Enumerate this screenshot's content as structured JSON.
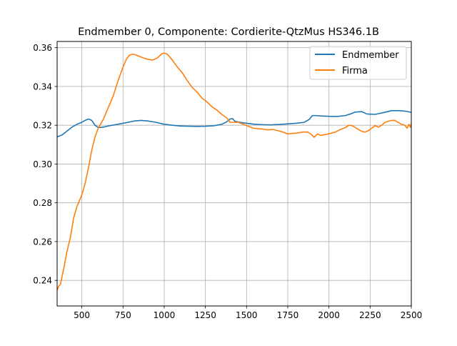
{
  "chart_data": {
    "type": "line",
    "title": "Endmember 0, Componente: Cordierite-QtzMus HS346.1B",
    "xlabel": "",
    "ylabel": "",
    "xlim": [
      350,
      2500
    ],
    "ylim": [
      0.2268,
      0.3632
    ],
    "grid": true,
    "legend_position": "upper right",
    "x_ticks": [
      500,
      750,
      1000,
      1250,
      1500,
      1750,
      2000,
      2250,
      2500
    ],
    "x_tick_labels": [
      "500",
      "750",
      "1000",
      "1250",
      "1500",
      "1750",
      "2000",
      "2250",
      "2500"
    ],
    "y_ticks": [
      0.24,
      0.26,
      0.28,
      0.3,
      0.32,
      0.34,
      0.36
    ],
    "y_tick_labels": [
      "0.24",
      "0.26",
      "0.28",
      "0.30",
      "0.32",
      "0.34",
      "0.36"
    ],
    "series": [
      {
        "name": "Endmember",
        "color": "#1f77b4",
        "points": [
          [
            350,
            0.314
          ],
          [
            380,
            0.315
          ],
          [
            410,
            0.317
          ],
          [
            440,
            0.319
          ],
          [
            470,
            0.3205
          ],
          [
            500,
            0.3215
          ],
          [
            520,
            0.3225
          ],
          [
            540,
            0.3232
          ],
          [
            560,
            0.3225
          ],
          [
            580,
            0.32
          ],
          [
            600,
            0.3188
          ],
          [
            630,
            0.319
          ],
          [
            670,
            0.3198
          ],
          [
            720,
            0.3205
          ],
          [
            780,
            0.3215
          ],
          [
            820,
            0.3222
          ],
          [
            860,
            0.3225
          ],
          [
            900,
            0.3222
          ],
          [
            950,
            0.3215
          ],
          [
            1000,
            0.3205
          ],
          [
            1050,
            0.32
          ],
          [
            1100,
            0.3196
          ],
          [
            1150,
            0.3195
          ],
          [
            1200,
            0.3194
          ],
          [
            1250,
            0.3195
          ],
          [
            1300,
            0.3197
          ],
          [
            1350,
            0.3205
          ],
          [
            1380,
            0.3218
          ],
          [
            1400,
            0.3232
          ],
          [
            1415,
            0.3234
          ],
          [
            1430,
            0.322
          ],
          [
            1460,
            0.3215
          ],
          [
            1500,
            0.321
          ],
          [
            1550,
            0.3205
          ],
          [
            1600,
            0.3203
          ],
          [
            1650,
            0.3202
          ],
          [
            1700,
            0.3204
          ],
          [
            1750,
            0.3207
          ],
          [
            1800,
            0.321
          ],
          [
            1850,
            0.3215
          ],
          [
            1880,
            0.323
          ],
          [
            1900,
            0.325
          ],
          [
            1920,
            0.325
          ],
          [
            1950,
            0.3248
          ],
          [
            2000,
            0.3246
          ],
          [
            2050,
            0.3245
          ],
          [
            2100,
            0.325
          ],
          [
            2130,
            0.3258
          ],
          [
            2160,
            0.3268
          ],
          [
            2200,
            0.327
          ],
          [
            2230,
            0.3258
          ],
          [
            2280,
            0.3256
          ],
          [
            2330,
            0.3265
          ],
          [
            2380,
            0.3275
          ],
          [
            2430,
            0.3275
          ],
          [
            2470,
            0.3272
          ],
          [
            2500,
            0.3266
          ]
        ]
      },
      {
        "name": "Firma",
        "color": "#ff7f0e",
        "points": [
          [
            350,
            0.235
          ],
          [
            360,
            0.237
          ],
          [
            370,
            0.238
          ],
          [
            390,
            0.246
          ],
          [
            410,
            0.255
          ],
          [
            430,
            0.262
          ],
          [
            450,
            0.272
          ],
          [
            470,
            0.278
          ],
          [
            500,
            0.284
          ],
          [
            520,
            0.29
          ],
          [
            540,
            0.298
          ],
          [
            560,
            0.307
          ],
          [
            580,
            0.314
          ],
          [
            600,
            0.3185
          ],
          [
            630,
            0.323
          ],
          [
            660,
            0.329
          ],
          [
            690,
            0.335
          ],
          [
            720,
            0.343
          ],
          [
            750,
            0.35
          ],
          [
            770,
            0.354
          ],
          [
            790,
            0.3562
          ],
          [
            810,
            0.3566
          ],
          [
            830,
            0.3562
          ],
          [
            850,
            0.3555
          ],
          [
            870,
            0.3548
          ],
          [
            900,
            0.354
          ],
          [
            930,
            0.3536
          ],
          [
            960,
            0.3548
          ],
          [
            985,
            0.3568
          ],
          [
            1000,
            0.3572
          ],
          [
            1020,
            0.3566
          ],
          [
            1050,
            0.3535
          ],
          [
            1080,
            0.35
          ],
          [
            1110,
            0.347
          ],
          [
            1140,
            0.343
          ],
          [
            1170,
            0.3395
          ],
          [
            1200,
            0.337
          ],
          [
            1230,
            0.334
          ],
          [
            1260,
            0.332
          ],
          [
            1290,
            0.3295
          ],
          [
            1320,
            0.3278
          ],
          [
            1350,
            0.3255
          ],
          [
            1380,
            0.3238
          ],
          [
            1400,
            0.3215
          ],
          [
            1420,
            0.3215
          ],
          [
            1450,
            0.3215
          ],
          [
            1480,
            0.3205
          ],
          [
            1510,
            0.3195
          ],
          [
            1540,
            0.3185
          ],
          [
            1570,
            0.3182
          ],
          [
            1600,
            0.318
          ],
          [
            1630,
            0.3176
          ],
          [
            1660,
            0.3178
          ],
          [
            1690,
            0.3172
          ],
          [
            1720,
            0.3165
          ],
          [
            1750,
            0.3155
          ],
          [
            1780,
            0.3158
          ],
          [
            1810,
            0.316
          ],
          [
            1840,
            0.3165
          ],
          [
            1870,
            0.3165
          ],
          [
            1890,
            0.3155
          ],
          [
            1910,
            0.3138
          ],
          [
            1930,
            0.3155
          ],
          [
            1950,
            0.3148
          ],
          [
            1980,
            0.3152
          ],
          [
            2010,
            0.3158
          ],
          [
            2040,
            0.3165
          ],
          [
            2070,
            0.3178
          ],
          [
            2100,
            0.3188
          ],
          [
            2120,
            0.32
          ],
          [
            2140,
            0.3198
          ],
          [
            2160,
            0.3188
          ],
          [
            2180,
            0.3178
          ],
          [
            2200,
            0.3168
          ],
          [
            2220,
            0.3165
          ],
          [
            2240,
            0.3172
          ],
          [
            2260,
            0.3185
          ],
          [
            2280,
            0.3198
          ],
          [
            2300,
            0.319
          ],
          [
            2320,
            0.32
          ],
          [
            2340,
            0.3215
          ],
          [
            2360,
            0.322
          ],
          [
            2380,
            0.3225
          ],
          [
            2400,
            0.3225
          ],
          [
            2420,
            0.3215
          ],
          [
            2440,
            0.3205
          ],
          [
            2460,
            0.32
          ],
          [
            2475,
            0.3185
          ],
          [
            2485,
            0.3205
          ],
          [
            2495,
            0.319
          ],
          [
            2500,
            0.321
          ]
        ]
      }
    ]
  }
}
